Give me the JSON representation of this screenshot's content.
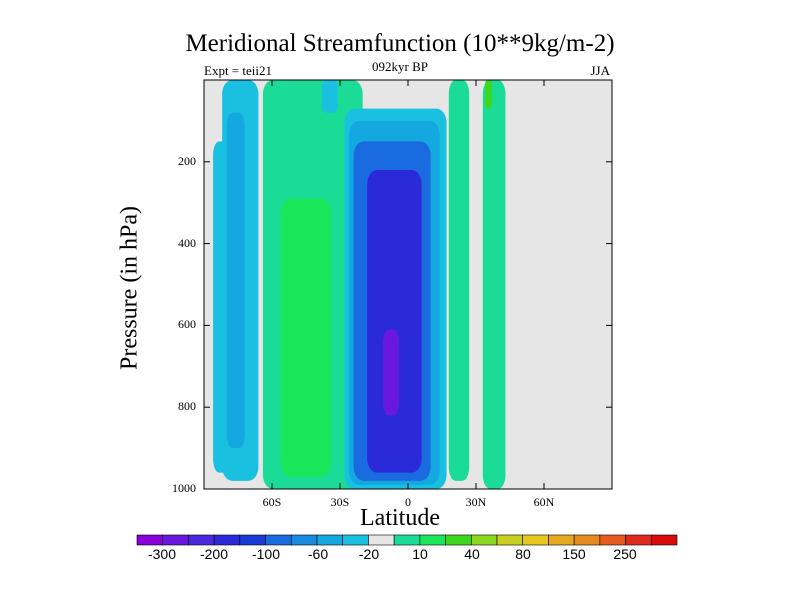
{
  "title": "Meridional Streamfunction (10**9kg/m-2)",
  "subtitle": "092kyr BP",
  "expt_label": "Expt = teii21",
  "season": "JJA",
  "colors": {
    "background": "#ffffff",
    "plot_bg": "#e6e6e6"
  },
  "chart_data": {
    "type": "heatmap",
    "title": "Meridional Streamfunction (10**9kg/m-2)",
    "xlabel": "Latitude",
    "ylabel": "Pressure (in hPa)",
    "xlim": [
      -90,
      90
    ],
    "ylim": [
      1000,
      0
    ],
    "x_ticks": [
      -60,
      -30,
      0,
      30,
      60
    ],
    "x_tick_labels": [
      "60S",
      "30S",
      "0",
      "30N",
      "60N"
    ],
    "y_ticks": [
      200,
      400,
      600,
      800,
      1000
    ],
    "y_tick_labels": [
      "200",
      "400",
      "600",
      "800",
      "1000"
    ],
    "grid": false,
    "colorbar": {
      "labels": [
        "-300",
        "-200",
        "-100",
        "-60",
        "-20",
        "10",
        "40",
        "80",
        "150",
        "250"
      ],
      "colors": [
        "#8a00d8",
        "#6a18e0",
        "#4a28e0",
        "#2a2ad8",
        "#1a3ad8",
        "#1a6ae0",
        "#1a8ae0",
        "#14a8e0",
        "#1ac0e0",
        "#e6e6e6",
        "#1adc96",
        "#1ae65a",
        "#3cd81e",
        "#8cd81e",
        "#c8d01e",
        "#e6c81e",
        "#e6a81e",
        "#e68a1e",
        "#e65a1e",
        "#e02a1e",
        "#d80a0a"
      ]
    },
    "regions": [
      {
        "level": -20,
        "color": "#1ac0e0",
        "lat_range": [
          -82,
          -66
        ],
        "p_range": [
          0,
          980
        ]
      },
      {
        "level": -20,
        "color": "#1ac0e0",
        "lat_range": [
          -86,
          -78
        ],
        "p_range": [
          150,
          960
        ]
      },
      {
        "level": -60,
        "color": "#14a8e0",
        "lat_range": [
          -80,
          -72
        ],
        "p_range": [
          80,
          900
        ]
      },
      {
        "level": 10,
        "color": "#1adc96",
        "lat_range": [
          -64,
          -20
        ],
        "p_range": [
          0,
          1000
        ]
      },
      {
        "level": 40,
        "color": "#1ae65a",
        "lat_range": [
          -56,
          -34
        ],
        "p_range": [
          290,
          970
        ]
      },
      {
        "level": -20,
        "color": "#1ac0e0",
        "lat_range": [
          -28,
          17
        ],
        "p_range": [
          70,
          1000
        ]
      },
      {
        "level": -60,
        "color": "#14a8e0",
        "lat_range": [
          -26,
          14
        ],
        "p_range": [
          100,
          990
        ]
      },
      {
        "level": -100,
        "color": "#1a6ae0",
        "lat_range": [
          -24,
          10
        ],
        "p_range": [
          150,
          980
        ]
      },
      {
        "level": -200,
        "color": "#2a2ad8",
        "lat_range": [
          -18,
          6
        ],
        "p_range": [
          220,
          960
        ]
      },
      {
        "level": -300,
        "color": "#6a18e0",
        "lat_range": [
          -11,
          -4
        ],
        "p_range": [
          610,
          820
        ]
      },
      {
        "level": 10,
        "color": "#1adc96",
        "lat_range": [
          18,
          27
        ],
        "p_range": [
          0,
          980
        ]
      },
      {
        "level": -20,
        "color": "#1ac0e0",
        "lat_range": [
          -38,
          -31
        ],
        "p_range": [
          0,
          80
        ]
      },
      {
        "level": 10,
        "color": "#1adc96",
        "lat_range": [
          20,
          25
        ],
        "p_range": [
          270,
          960
        ]
      },
      {
        "level": 10,
        "color": "#1adc96",
        "lat_range": [
          33,
          43
        ],
        "p_range": [
          0,
          1000
        ]
      },
      {
        "level": 40,
        "color": "#3cd81e",
        "lat_range": [
          34,
          37
        ],
        "p_range": [
          0,
          70
        ]
      }
    ]
  }
}
